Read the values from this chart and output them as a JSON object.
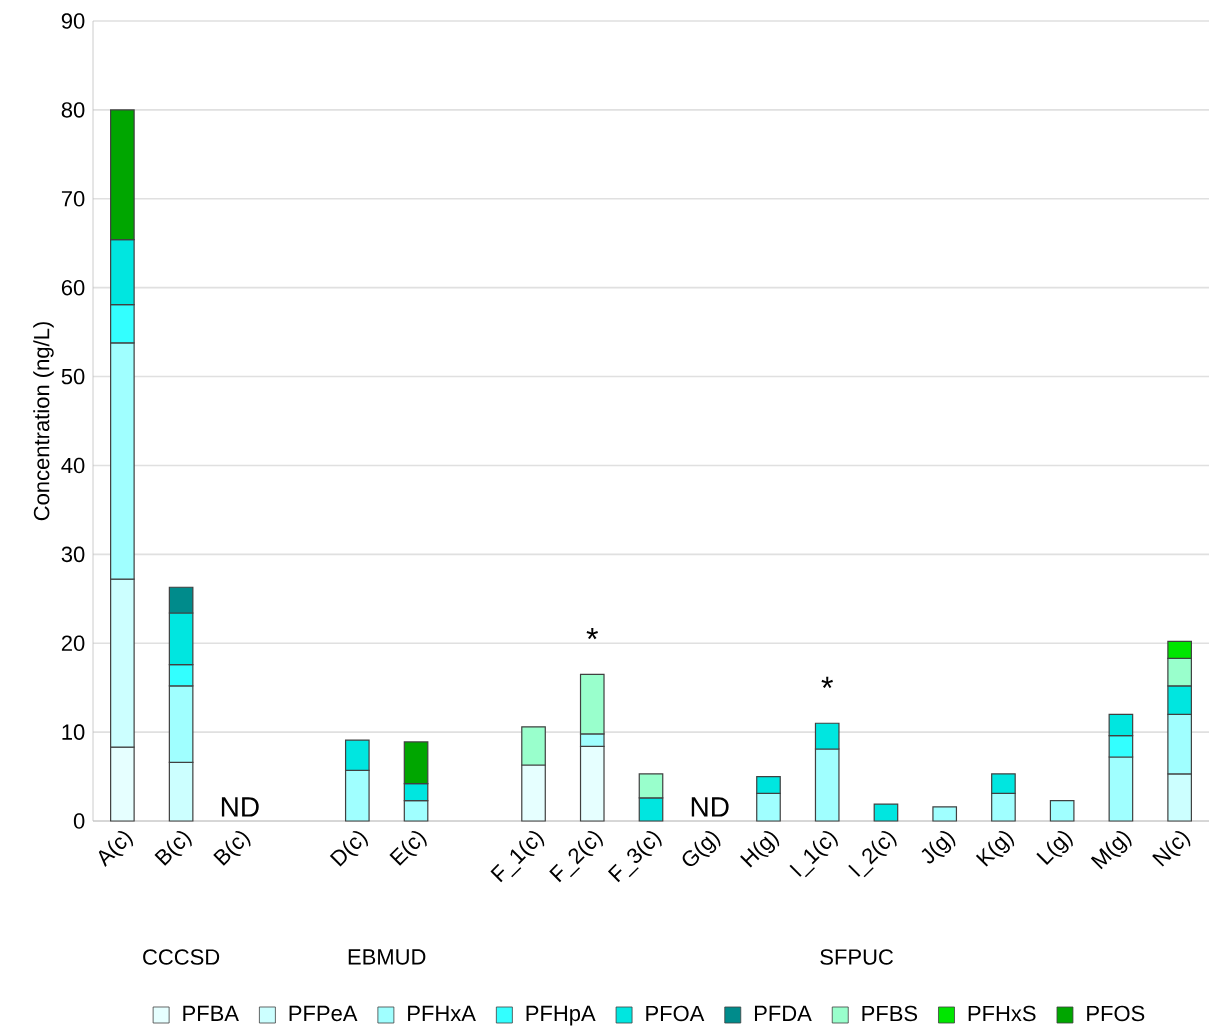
{
  "chart_data": {
    "type": "bar",
    "stacked": true,
    "ylabel": "Concentration (ng/L)",
    "categories": [
      "A(c)",
      "B(c)",
      "B(c)",
      null,
      "D(c)",
      "E(c)",
      null,
      "F_1(c)",
      "F_2(c)",
      "F_3(c)",
      "G(g)",
      "H(g)",
      "I_1(c)",
      "I_2(c)",
      "J(g)",
      "K(g)",
      "L(g)",
      "M(g)",
      "N(c)"
    ],
    "series": [
      {
        "name": "PFBA",
        "color": "#e6ffff",
        "values": [
          8.3,
          null,
          null,
          null,
          null,
          null,
          null,
          6.3,
          8.4,
          null,
          null,
          null,
          null,
          null,
          null,
          null,
          null,
          null,
          null
        ]
      },
      {
        "name": "PFPeA",
        "color": "#ccffff",
        "values": [
          18.9,
          6.6,
          null,
          null,
          null,
          null,
          null,
          null,
          null,
          null,
          null,
          null,
          null,
          null,
          null,
          null,
          null,
          null,
          5.3
        ]
      },
      {
        "name": "PFHxA",
        "color": "#a0ffff",
        "values": [
          26.6,
          8.6,
          null,
          null,
          5.7,
          2.3,
          null,
          null,
          1.4,
          null,
          null,
          3.1,
          8.1,
          null,
          1.6,
          3.1,
          2.3,
          7.2,
          6.7
        ]
      },
      {
        "name": "PFHpA",
        "color": "#33ffff",
        "values": [
          4.3,
          2.4,
          null,
          null,
          null,
          null,
          null,
          null,
          null,
          null,
          null,
          null,
          null,
          null,
          null,
          null,
          null,
          2.4,
          null
        ]
      },
      {
        "name": "PFOA",
        "color": "#00e6e0",
        "values": [
          7.3,
          5.8,
          null,
          null,
          3.4,
          1.9,
          null,
          null,
          null,
          2.6,
          null,
          1.9,
          2.9,
          1.9,
          null,
          2.2,
          null,
          2.4,
          3.2
        ]
      },
      {
        "name": "PFDA",
        "color": "#008b8b",
        "values": [
          null,
          2.9,
          null,
          null,
          null,
          null,
          null,
          null,
          null,
          null,
          null,
          null,
          null,
          null,
          null,
          null,
          null,
          null,
          null
        ]
      },
      {
        "name": "PFBS",
        "color": "#99ffcc",
        "values": [
          null,
          null,
          null,
          null,
          null,
          null,
          null,
          4.3,
          6.7,
          2.7,
          null,
          null,
          null,
          null,
          null,
          null,
          null,
          null,
          3.1
        ]
      },
      {
        "name": "PFHxS",
        "color": "#00e600",
        "values": [
          null,
          null,
          null,
          null,
          null,
          null,
          null,
          null,
          null,
          null,
          null,
          null,
          null,
          null,
          null,
          null,
          null,
          null,
          1.9
        ]
      },
      {
        "name": "PFOS",
        "color": "#00a600",
        "values": [
          14.6,
          null,
          null,
          null,
          null,
          4.7,
          null,
          null,
          null,
          null,
          null,
          null,
          null,
          null,
          null,
          null,
          null,
          null,
          null
        ]
      }
    ],
    "ylim": [
      0,
      90
    ],
    "yticks": [
      0,
      10,
      20,
      30,
      40,
      50,
      60,
      70,
      80,
      90
    ],
    "grid": "y",
    "legend": "bottom",
    "annotations": [
      "ND",
      "ND",
      "*",
      "*",
      "CCCSD",
      "EBMUD",
      "SFPUC"
    ]
  }
}
